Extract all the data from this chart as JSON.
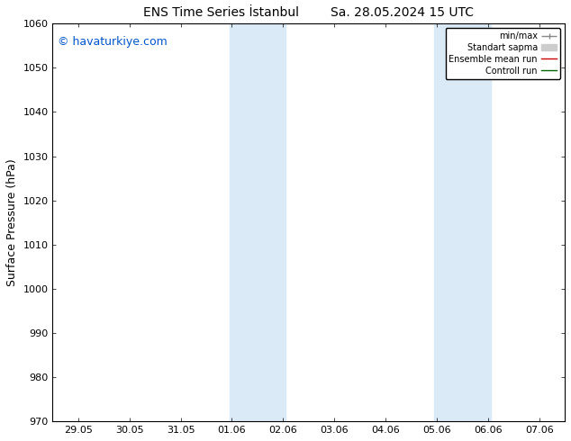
{
  "title": "ENS Time Series İstanbul        Sa. 28.05.2024 15 UTC",
  "ylabel": "Surface Pressure (hPa)",
  "ylim": [
    970,
    1060
  ],
  "yticks": [
    970,
    980,
    990,
    1000,
    1010,
    1020,
    1030,
    1040,
    1050,
    1060
  ],
  "xtick_labels": [
    "29.05",
    "30.05",
    "31.05",
    "01.06",
    "02.06",
    "03.06",
    "04.06",
    "05.06",
    "06.06",
    "07.06"
  ],
  "xtick_positions": [
    0,
    1,
    2,
    3,
    4,
    5,
    6,
    7,
    8,
    9
  ],
  "shaded_regions": [
    {
      "xstart": 3,
      "xend": 4
    },
    {
      "xstart": 7,
      "xend": 8
    }
  ],
  "shaded_color": "#daeaf7",
  "watermark": "© havaturkiye.com",
  "watermark_color": "#0055cc",
  "legend_entries": [
    {
      "label": "min/max",
      "color": "#888888",
      "style": "errbar"
    },
    {
      "label": "Standart sapma",
      "color": "#cccccc",
      "style": "fill"
    },
    {
      "label": "Ensemble mean run",
      "color": "#cc0000",
      "style": "line"
    },
    {
      "label": "Controll run",
      "color": "#006600",
      "style": "line"
    }
  ],
  "background_color": "#ffffff",
  "title_fontsize": 10,
  "label_fontsize": 8,
  "watermark_fontsize": 9
}
